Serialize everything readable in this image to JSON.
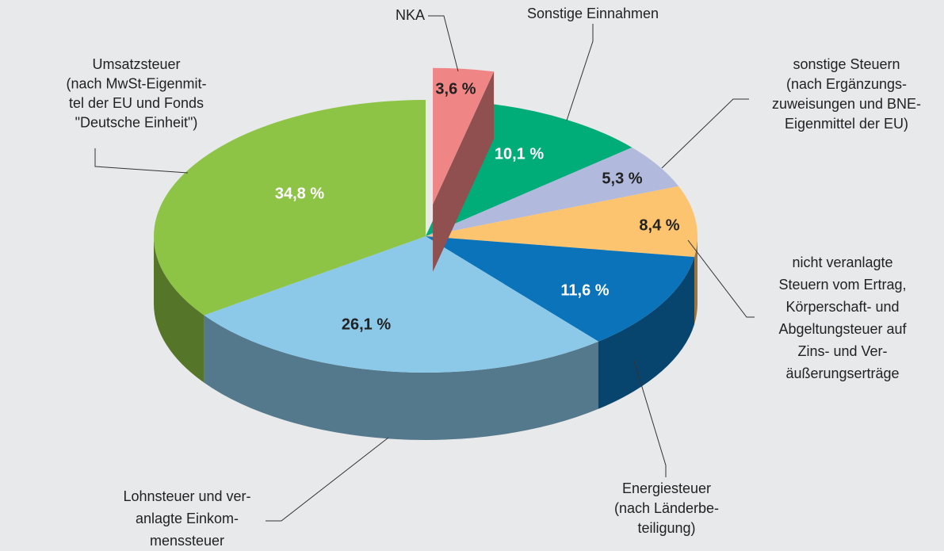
{
  "chart_data": {
    "type": "pie",
    "style": "3d",
    "categories": [
      [
        "NKA"
      ],
      [
        "Sonstige Einnahmen"
      ],
      [
        "sonstige Steuern",
        "(nach Ergänzungs-",
        "zuweisungen und BNE-",
        "Eigenmittel der EU)"
      ],
      [
        "nicht veranlagte",
        "Steuern vom Ertrag,",
        "Körperschaft- und",
        "Abgeltungsteuer auf",
        "Zins- und Ver-",
        "äußerungserträge"
      ],
      [
        "Energiesteuer",
        "(nach Länderbe-",
        "teiligung)"
      ],
      [
        "Lohnsteuer und ver-",
        "anlagte Einkom-",
        "menssteuer"
      ],
      [
        "Umsatzsteuer",
        "(nach MwSt-Eigenmit-",
        "tel der EU und Fonds",
        "\"Deutsche Einheit\")"
      ]
    ],
    "values": [
      3.6,
      10.1,
      5.3,
      8.4,
      11.6,
      26.1,
      34.8
    ],
    "value_labels": [
      "3,6 %",
      "10,1 %",
      "5,3 %",
      "8,4 %",
      "11,6 %",
      "26,1 %",
      "34,8 %"
    ],
    "colors": [
      "#f08585",
      "#00ad78",
      "#b1b9dd",
      "#fdc46f",
      "#0b73b9",
      "#8cc9e9",
      "#8dc445"
    ],
    "value_label_colors": [
      "#222222",
      "#ffffff",
      "#222222",
      "#222222",
      "#ffffff",
      "#222222",
      "#ffffff"
    ],
    "exploded": [
      0
    ]
  }
}
